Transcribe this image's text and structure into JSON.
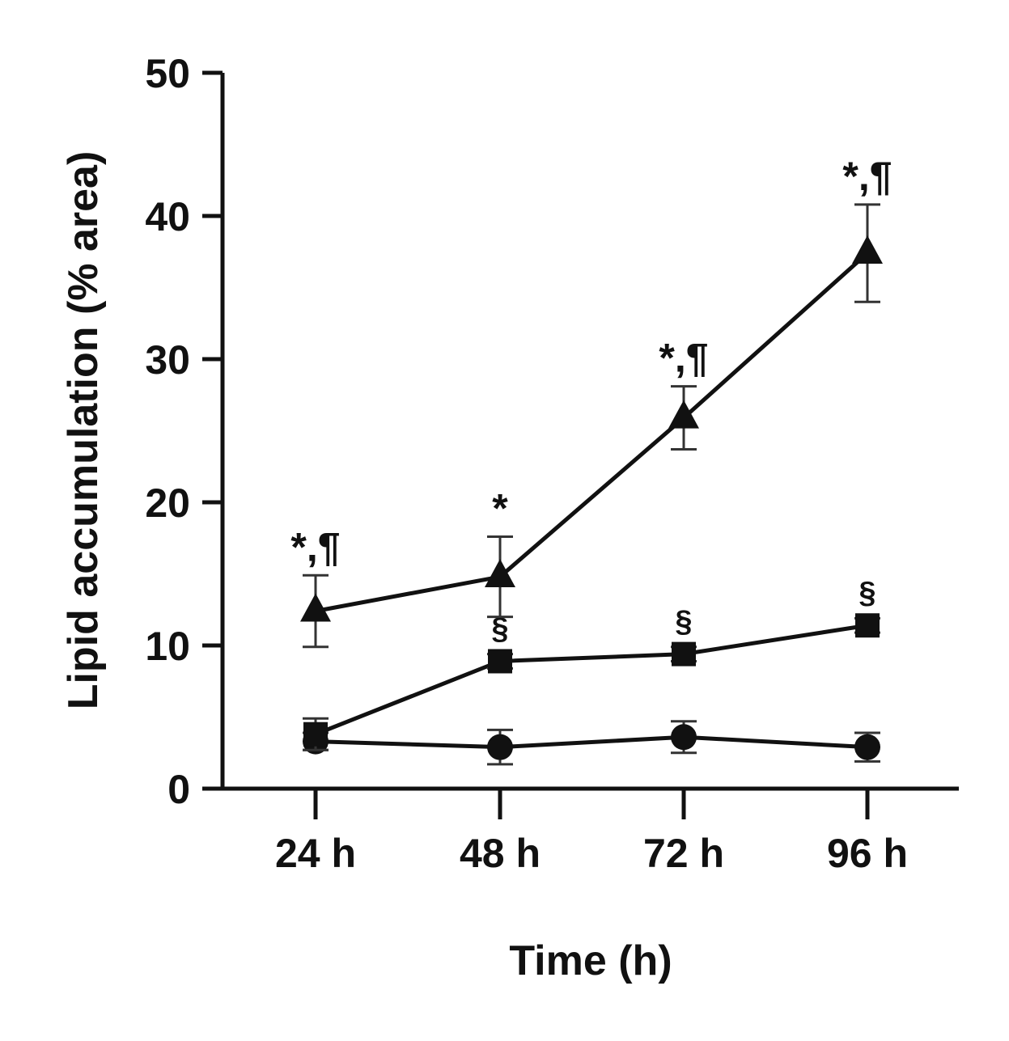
{
  "chart_data": {
    "type": "line",
    "title": "",
    "xlabel": "Time (h)",
    "ylabel": "Lipid accumulation (% area)",
    "categories": [
      "24 h",
      "48 h",
      "72 h",
      "96 h"
    ],
    "ylim": [
      0,
      50
    ],
    "yticks": [
      0,
      10,
      20,
      30,
      40,
      50
    ],
    "grid": false,
    "legend": "none",
    "series": [
      {
        "name": "triangle",
        "marker": "triangle",
        "values": [
          12.4,
          14.8,
          25.9,
          37.4
        ],
        "errors": [
          2.5,
          2.8,
          2.2,
          3.4
        ],
        "annotations": [
          "*,¶",
          "*",
          "*,¶",
          "*,¶"
        ]
      },
      {
        "name": "square",
        "marker": "square",
        "values": [
          3.8,
          8.9,
          9.4,
          11.4
        ],
        "errors": [
          1.1,
          0.5,
          0.5,
          0.5
        ],
        "annotations": [
          "",
          "§",
          "§",
          "§"
        ]
      },
      {
        "name": "circle",
        "marker": "circle",
        "values": [
          3.3,
          2.9,
          3.6,
          2.9
        ],
        "errors": [
          0.6,
          1.2,
          1.1,
          1.0
        ],
        "annotations": [
          "",
          "",
          "",
          ""
        ]
      }
    ]
  }
}
